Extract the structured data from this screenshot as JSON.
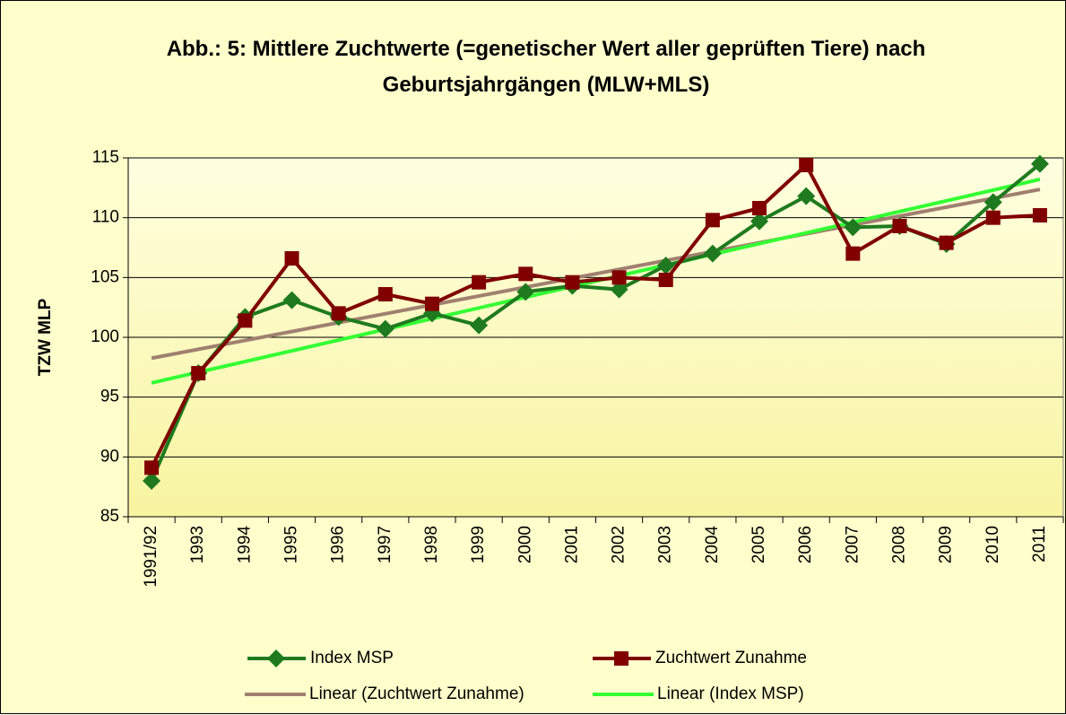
{
  "chart_data": {
    "type": "line",
    "title": "Abb.: 5: Mittlere Zuchtwerte (=genetischer Wert aller geprüften Tiere) nach Geburtsjahrgängen (MLW+MLS)",
    "ylabel": "TZW MLP",
    "categories": [
      "1991/92",
      "1993",
      "1994",
      "1995",
      "1996",
      "1997",
      "1998",
      "1999",
      "2000",
      "2001",
      "2002",
      "2003",
      "2004",
      "2005",
      "2006",
      "2007",
      "2008",
      "2009",
      "2010",
      "2011"
    ],
    "series": [
      {
        "name": "Index MSP",
        "color": "#1f7a1f",
        "marker": "diamond",
        "values": [
          88,
          97,
          101.7,
          103.1,
          101.7,
          100.7,
          102,
          101,
          103.8,
          104.3,
          104,
          106,
          107,
          109.7,
          111.8,
          109.2,
          109.3,
          107.8,
          111.3,
          114.5
        ]
      },
      {
        "name": "Zuchtwert Zunahme",
        "color": "#800000",
        "marker": "square",
        "values": [
          89.1,
          97,
          101.4,
          106.6,
          102,
          103.6,
          102.8,
          104.6,
          105.3,
          104.6,
          105,
          104.8,
          109.8,
          110.8,
          114.4,
          107,
          109.3,
          107.9,
          110,
          110.2
        ]
      }
    ],
    "trendlines": [
      {
        "name": "Linear (Zuchtwert Zunahme)",
        "color": "#a08070",
        "source": 1
      },
      {
        "name": "Linear (Index MSP)",
        "color": "#33ff33",
        "source": 0
      }
    ],
    "ylim": [
      85,
      115
    ],
    "yticks": [
      85,
      90,
      95,
      100,
      105,
      110,
      115
    ],
    "grid": true
  }
}
